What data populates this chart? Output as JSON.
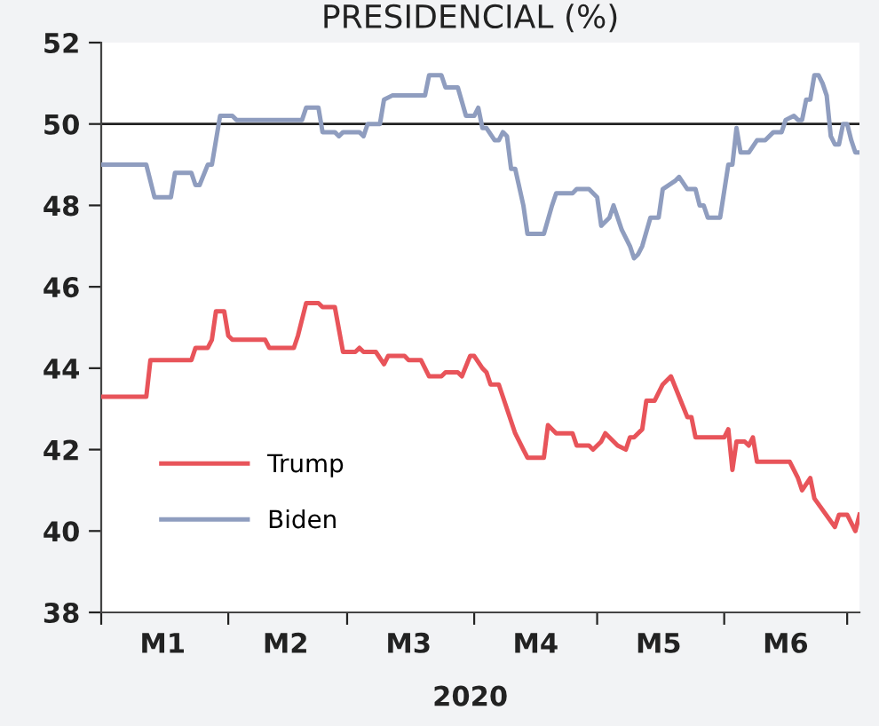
{
  "chart_data": {
    "type": "line",
    "title": "PRESIDENCIAL (%)",
    "xlabel": "2020",
    "xlim": [
      "2020-01-01",
      "2020-07-04"
    ],
    "xticks": [
      {
        "value": "2020-01-01",
        "label": null
      },
      {
        "value": "2020-01-16",
        "label": "M1"
      },
      {
        "value": "2020-02-01",
        "label": null
      },
      {
        "value": "2020-02-15",
        "label": "M2"
      },
      {
        "value": "2020-03-01",
        "label": null
      },
      {
        "value": "2020-03-16",
        "label": "M3"
      },
      {
        "value": "2020-04-01",
        "label": null
      },
      {
        "value": "2020-04-16",
        "label": "M4"
      },
      {
        "value": "2020-05-01",
        "label": null
      },
      {
        "value": "2020-05-16",
        "label": "M5"
      },
      {
        "value": "2020-06-01",
        "label": null
      },
      {
        "value": "2020-06-16",
        "label": "M6"
      },
      {
        "value": "2020-07-01",
        "label": null
      }
    ],
    "ylim": [
      38,
      52
    ],
    "yticks": [
      38,
      40,
      42,
      44,
      46,
      48,
      50,
      52
    ],
    "ref_lines": [
      {
        "axis": "y",
        "value": 50,
        "color": "#222222"
      }
    ],
    "grid": false,
    "legend": "bottom left",
    "marker": "none",
    "line_style": "solid",
    "series": [
      {
        "name": "Trump",
        "color": "#e8545a",
        "x": [
          "2020-01-01",
          "2020-01-12",
          "2020-01-13",
          "2020-01-23",
          "2020-01-24",
          "2020-01-27",
          "2020-01-28",
          "2020-01-29",
          "2020-01-31",
          "2020-02-01",
          "2020-02-02",
          "2020-02-10",
          "2020-02-11",
          "2020-02-17",
          "2020-02-18",
          "2020-02-20",
          "2020-02-23",
          "2020-02-24",
          "2020-02-27",
          "2020-02-29",
          "2020-03-03",
          "2020-03-04",
          "2020-03-05",
          "2020-03-08",
          "2020-03-10",
          "2020-03-11",
          "2020-03-15",
          "2020-03-16",
          "2020-03-19",
          "2020-03-21",
          "2020-03-24",
          "2020-03-25",
          "2020-03-28",
          "2020-03-29",
          "2020-03-31",
          "2020-04-01",
          "2020-04-03",
          "2020-04-04",
          "2020-04-05",
          "2020-04-07",
          "2020-04-11",
          "2020-04-13",
          "2020-04-14",
          "2020-04-18",
          "2020-04-19",
          "2020-04-21",
          "2020-04-25",
          "2020-04-26",
          "2020-04-29",
          "2020-04-30",
          "2020-05-02",
          "2020-05-03",
          "2020-05-06",
          "2020-05-08",
          "2020-05-09",
          "2020-05-10",
          "2020-05-12",
          "2020-05-13",
          "2020-05-15",
          "2020-05-17",
          "2020-05-19",
          "2020-05-21",
          "2020-05-23",
          "2020-05-24",
          "2020-05-25",
          "2020-06-01",
          "2020-06-02",
          "2020-06-03",
          "2020-06-04",
          "2020-06-06",
          "2020-06-07",
          "2020-06-08",
          "2020-06-09",
          "2020-06-17",
          "2020-06-19",
          "2020-06-20",
          "2020-06-22",
          "2020-06-23",
          "2020-06-28",
          "2020-06-29",
          "2020-07-01",
          "2020-07-03",
          "2020-07-04"
        ],
        "values": [
          43.3,
          43.3,
          44.2,
          44.2,
          44.5,
          44.5,
          44.7,
          45.4,
          45.4,
          44.8,
          44.7,
          44.7,
          44.5,
          44.5,
          44.8,
          45.6,
          45.6,
          45.5,
          45.5,
          44.4,
          44.4,
          44.5,
          44.4,
          44.4,
          44.1,
          44.3,
          44.3,
          44.2,
          44.2,
          43.8,
          43.8,
          43.9,
          43.9,
          43.8,
          44.3,
          44.3,
          44.0,
          43.9,
          43.6,
          43.6,
          42.4,
          42.0,
          41.8,
          41.8,
          42.6,
          42.4,
          42.4,
          42.1,
          42.1,
          42.0,
          42.2,
          42.4,
          42.1,
          42.0,
          42.3,
          42.3,
          42.5,
          43.2,
          43.2,
          43.6,
          43.8,
          43.3,
          42.8,
          42.8,
          42.3,
          42.3,
          42.5,
          41.5,
          42.2,
          42.2,
          42.1,
          42.3,
          41.7,
          41.7,
          41.3,
          41.0,
          41.3,
          40.8,
          40.1,
          40.4,
          40.4,
          40.0,
          40.4
        ]
      },
      {
        "name": "Biden",
        "color": "#8f9dbf",
        "x": [
          "2020-01-01",
          "2020-01-12",
          "2020-01-14",
          "2020-01-18",
          "2020-01-19",
          "2020-01-23",
          "2020-01-24",
          "2020-01-25",
          "2020-01-27",
          "2020-01-28",
          "2020-01-30",
          "2020-02-02",
          "2020-02-03",
          "2020-02-19",
          "2020-02-20",
          "2020-02-23",
          "2020-02-24",
          "2020-02-27",
          "2020-02-28",
          "2020-02-29",
          "2020-03-04",
          "2020-03-05",
          "2020-03-06",
          "2020-03-09",
          "2020-03-10",
          "2020-03-12",
          "2020-03-20",
          "2020-03-21",
          "2020-03-24",
          "2020-03-25",
          "2020-03-28",
          "2020-03-30",
          "2020-04-01",
          "2020-04-02",
          "2020-04-03",
          "2020-04-04",
          "2020-04-06",
          "2020-04-07",
          "2020-04-08",
          "2020-04-09",
          "2020-04-10",
          "2020-04-11",
          "2020-04-13",
          "2020-04-14",
          "2020-04-18",
          "2020-04-20",
          "2020-04-21",
          "2020-04-25",
          "2020-04-26",
          "2020-04-29",
          "2020-05-01",
          "2020-05-02",
          "2020-05-04",
          "2020-05-05",
          "2020-05-07",
          "2020-05-09",
          "2020-05-10",
          "2020-05-11",
          "2020-05-12",
          "2020-05-14",
          "2020-05-16",
          "2020-05-17",
          "2020-05-20",
          "2020-05-21",
          "2020-05-23",
          "2020-05-25",
          "2020-05-26",
          "2020-05-27",
          "2020-05-28",
          "2020-05-31",
          "2020-06-02",
          "2020-06-03",
          "2020-06-04",
          "2020-06-05",
          "2020-06-07",
          "2020-06-09",
          "2020-06-11",
          "2020-06-13",
          "2020-06-15",
          "2020-06-16",
          "2020-06-18",
          "2020-06-19",
          "2020-06-20",
          "2020-06-21",
          "2020-06-22",
          "2020-06-23",
          "2020-06-24",
          "2020-06-25",
          "2020-06-26",
          "2020-06-27",
          "2020-06-28",
          "2020-06-29",
          "2020-06-30",
          "2020-07-01",
          "2020-07-02",
          "2020-07-03",
          "2020-07-04"
        ],
        "values": [
          49.0,
          49.0,
          48.2,
          48.2,
          48.8,
          48.8,
          48.5,
          48.5,
          49.0,
          49.0,
          50.2,
          50.2,
          50.1,
          50.1,
          50.4,
          50.4,
          49.8,
          49.8,
          49.7,
          49.8,
          49.8,
          49.7,
          50.0,
          50.0,
          50.6,
          50.7,
          50.7,
          51.2,
          51.2,
          50.9,
          50.9,
          50.2,
          50.2,
          50.4,
          49.9,
          49.9,
          49.6,
          49.6,
          49.8,
          49.7,
          48.9,
          48.9,
          48.0,
          47.3,
          47.3,
          48.0,
          48.3,
          48.3,
          48.4,
          48.4,
          48.2,
          47.5,
          47.7,
          48.0,
          47.4,
          47.0,
          46.7,
          46.8,
          47.0,
          47.7,
          47.7,
          48.4,
          48.6,
          48.7,
          48.4,
          48.4,
          48.0,
          48.0,
          47.7,
          47.7,
          49.0,
          49.0,
          49.9,
          49.3,
          49.3,
          49.6,
          49.6,
          49.8,
          49.8,
          50.1,
          50.2,
          50.1,
          50.1,
          50.6,
          50.6,
          51.2,
          51.2,
          51.0,
          50.7,
          49.7,
          49.5,
          49.5,
          50.0,
          50.0,
          49.6,
          49.3,
          49.3
        ]
      }
    ]
  }
}
